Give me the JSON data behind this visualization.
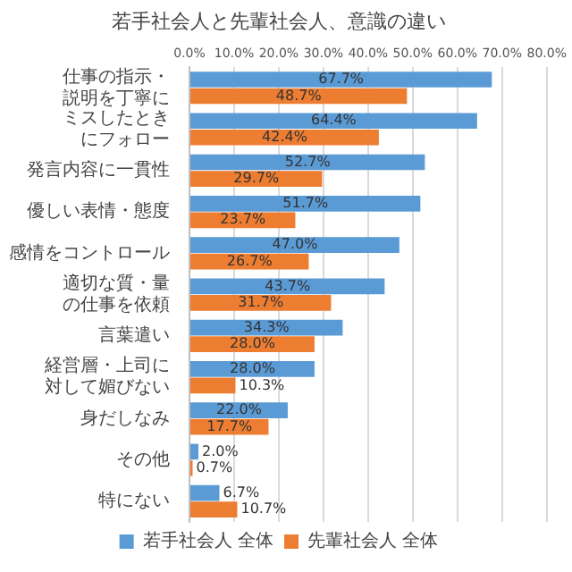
{
  "chart_data": {
    "type": "bar",
    "orientation": "horizontal",
    "title": "若手社会人と先輩社会人、意識の違い",
    "categories": [
      "仕事の指示・説明を丁寧に",
      "ミスしたときにフォロー",
      "発言内容に一貫性",
      "優しい表情・態度",
      "感情をコントロール",
      "適切な質・量の仕事を依頼",
      "言葉遣い",
      "経営層・上司に対して媚びない",
      "身だしなみ",
      "その他",
      "特にない"
    ],
    "series": [
      {
        "name": "若手社会人 全体",
        "color": "#5b9bd5",
        "values": [
          67.7,
          64.4,
          52.7,
          51.7,
          47.0,
          43.7,
          34.3,
          28.0,
          22.0,
          2.0,
          6.7
        ],
        "value_labels": [
          "67.7%",
          "64.4%",
          "52.7%",
          "51.7%",
          "47.0%",
          "43.7%",
          "34.3%",
          "28.0%",
          "22.0%",
          "2.0%",
          "6.7%"
        ]
      },
      {
        "name": "先輩社会人 全体",
        "color": "#ed7d31",
        "values": [
          48.7,
          42.4,
          29.7,
          23.7,
          26.7,
          31.7,
          28.0,
          10.3,
          17.7,
          0.7,
          10.7
        ],
        "value_labels": [
          "48.7%",
          "42.4%",
          "29.7%",
          "23.7%",
          "26.7%",
          "31.7%",
          "28.0%",
          "10.3%",
          "17.7%",
          "0.7%",
          "10.7%"
        ]
      }
    ],
    "xlim": [
      0,
      80
    ],
    "xticks": [
      {
        "value": 0,
        "label": "0.0%"
      },
      {
        "value": 10,
        "label": "10.0%"
      },
      {
        "value": 20,
        "label": "20.0%"
      },
      {
        "value": 30,
        "label": "30.0%"
      },
      {
        "value": 40,
        "label": "40.0%"
      },
      {
        "value": 50,
        "label": "50.0%"
      },
      {
        "value": 60,
        "label": "60.0%"
      },
      {
        "value": 70,
        "label": "70.0%"
      },
      {
        "value": 80,
        "label": "80.0%"
      }
    ],
    "grid": "x",
    "legend": "bottom"
  }
}
